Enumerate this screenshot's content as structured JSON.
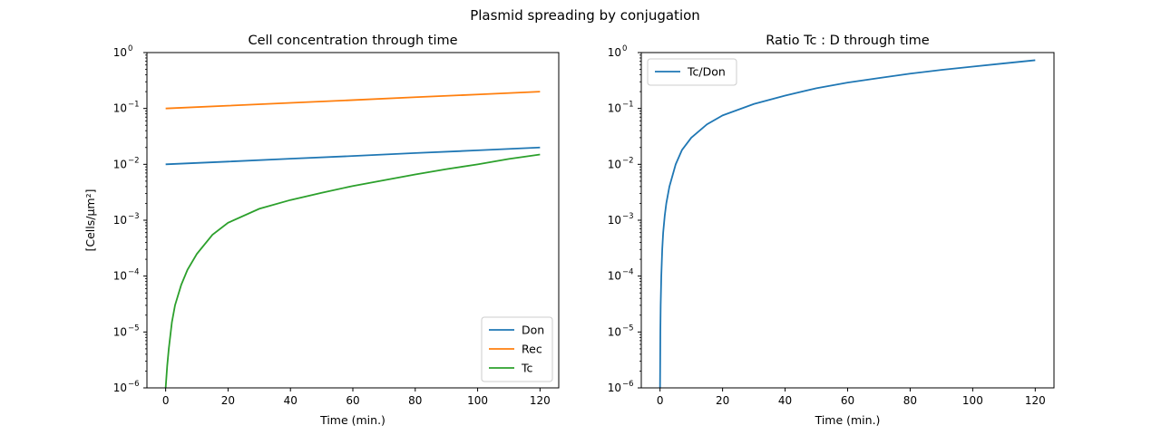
{
  "figure": {
    "suptitle": "Plasmid spreading by conjugation"
  },
  "colors": {
    "Don": "#1f77b4",
    "Rec": "#ff7f0e",
    "Tc": "#2ca02c",
    "Tc/Don": "#1f77b4"
  },
  "chart_data": [
    {
      "type": "line",
      "title": "Cell concentration through time",
      "xlabel": "Time (min.)",
      "ylabel": "[Cells/μm²]",
      "yscale": "log",
      "xlim": [
        -6,
        126
      ],
      "ylim": [
        1e-06,
        1
      ],
      "xticks": [
        0,
        20,
        40,
        60,
        80,
        100,
        120
      ],
      "yticks": [
        1e-06,
        1e-05,
        0.0001,
        0.001,
        0.01,
        0.1,
        1
      ],
      "ytick_labels": [
        {
          "base": "10",
          "exp": "−6"
        },
        {
          "base": "10",
          "exp": "−5"
        },
        {
          "base": "10",
          "exp": "−4"
        },
        {
          "base": "10",
          "exp": "−3"
        },
        {
          "base": "10",
          "exp": "−2"
        },
        {
          "base": "10",
          "exp": "−1"
        },
        {
          "base": "10",
          "exp": "0"
        }
      ],
      "grid": false,
      "legend": "lower-right",
      "series": [
        {
          "name": "Don",
          "x": [
            0,
            20,
            40,
            60,
            80,
            100,
            120
          ],
          "y": [
            0.01,
            0.0112,
            0.0126,
            0.0141,
            0.0159,
            0.0178,
            0.02
          ]
        },
        {
          "name": "Rec",
          "x": [
            0,
            20,
            40,
            60,
            80,
            100,
            120
          ],
          "y": [
            0.1,
            0.112,
            0.126,
            0.141,
            0.159,
            0.178,
            0.2
          ]
        },
        {
          "name": "Tc",
          "x": [
            0,
            0.5,
            1,
            2,
            3,
            5,
            7,
            10,
            15,
            20,
            30,
            40,
            50,
            60,
            70,
            80,
            90,
            100,
            110,
            120
          ],
          "y": [
            1e-06,
            2.5e-06,
            5e-06,
            1.5e-05,
            3e-05,
            7e-05,
            0.00013,
            0.00025,
            0.00055,
            0.0009,
            0.0016,
            0.0023,
            0.0031,
            0.0041,
            0.0052,
            0.0066,
            0.0082,
            0.01,
            0.0125,
            0.015
          ]
        }
      ]
    },
    {
      "type": "line",
      "title": "Ratio Tc : D through time",
      "xlabel": "Time (min.)",
      "ylabel": "",
      "yscale": "log",
      "xlim": [
        -6,
        126
      ],
      "ylim": [
        1e-06,
        1
      ],
      "xticks": [
        0,
        20,
        40,
        60,
        80,
        100,
        120
      ],
      "yticks": [
        1e-06,
        1e-05,
        0.0001,
        0.001,
        0.01,
        0.1,
        1
      ],
      "ytick_labels": [
        {
          "base": "10",
          "exp": "−6"
        },
        {
          "base": "10",
          "exp": "−5"
        },
        {
          "base": "10",
          "exp": "−4"
        },
        {
          "base": "10",
          "exp": "−3"
        },
        {
          "base": "10",
          "exp": "−2"
        },
        {
          "base": "10",
          "exp": "−1"
        },
        {
          "base": "10",
          "exp": "0"
        }
      ],
      "grid": false,
      "legend": "upper-left",
      "series": [
        {
          "name": "Tc/Don",
          "x": [
            0,
            0.1,
            0.2,
            0.4,
            0.7,
            1,
            1.5,
            2,
            3,
            5,
            7,
            10,
            15,
            20,
            30,
            40,
            50,
            60,
            70,
            80,
            90,
            100,
            110,
            120
          ],
          "y": [
            1e-06,
            1e-05,
            3e-05,
            0.0001,
            0.0003,
            0.0006,
            0.0012,
            0.002,
            0.004,
            0.01,
            0.018,
            0.03,
            0.052,
            0.075,
            0.12,
            0.17,
            0.23,
            0.29,
            0.35,
            0.42,
            0.49,
            0.56,
            0.64,
            0.73
          ]
        }
      ]
    }
  ]
}
